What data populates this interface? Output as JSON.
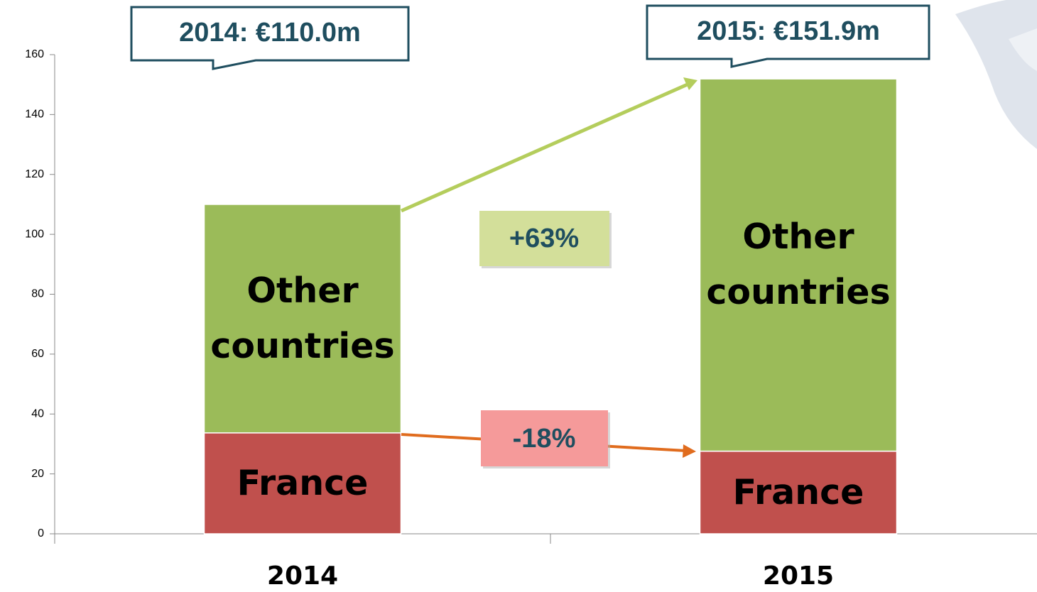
{
  "chart_data": {
    "type": "stacked_bar",
    "categories": [
      "2014",
      "2015"
    ],
    "series": [
      {
        "name": "France",
        "color": "#c0504d",
        "values": [
          33.7,
          27.6
        ]
      },
      {
        "name": "Other countries",
        "color": "#9bbb59",
        "values": [
          76.3,
          124.3
        ]
      }
    ],
    "ylim": [
      0,
      160
    ],
    "yticks": [
      0,
      20,
      40,
      60,
      80,
      100,
      120,
      140,
      160
    ],
    "annotations": [
      "2014: €110.0m",
      "2015: €151.9m",
      "+63%",
      "-18%"
    ]
  }
}
